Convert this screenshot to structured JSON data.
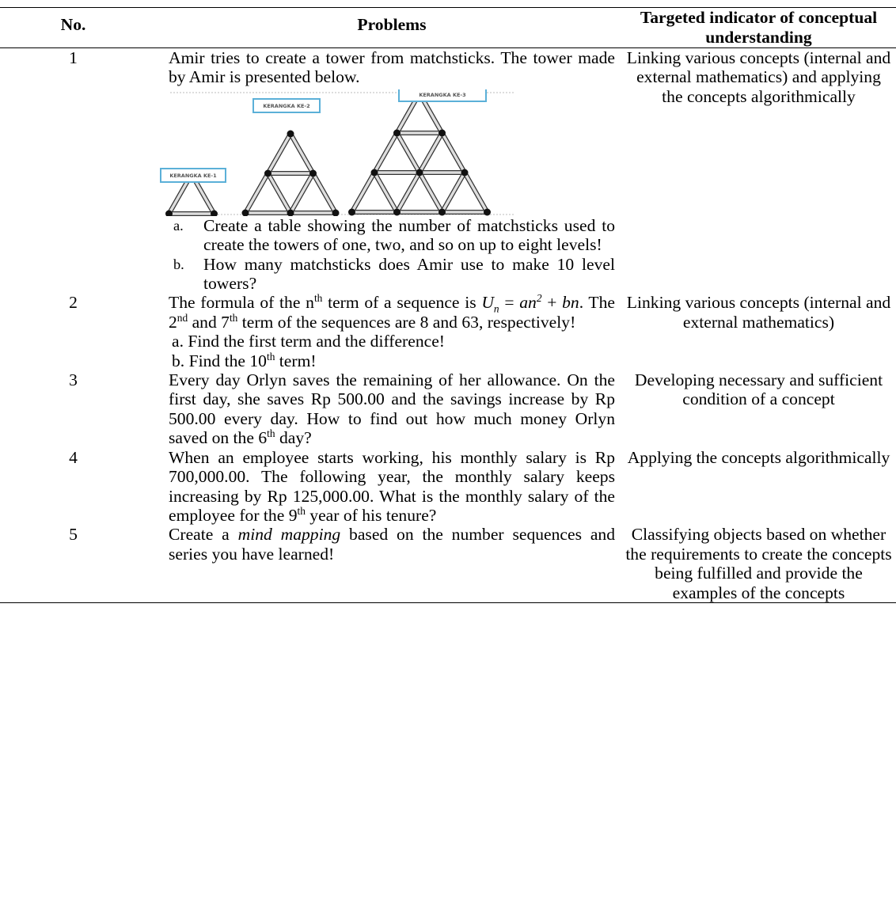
{
  "table": {
    "header": {
      "no": "No.",
      "problems": "Problems",
      "indicator": "Targeted indicator of conceptual understanding"
    },
    "rows": [
      {
        "no": "1",
        "problem": [
          "Amir tries to create a tower from matchsticks. The tower made by Amir is presented below."
        ],
        "figure_labels": [
          "KERANGKA KE-1",
          "KERANGKA KE-2",
          "KERANGKA KE-3"
        ],
        "items": [
          {
            "marker": "a.",
            "text": [
              "Create a table showing the number of matchsticks used to create the towers of one, two, and so on up to eight levels!"
            ]
          },
          {
            "marker": "b.",
            "text": [
              "How many matchsticks does Amir use to make 10 level towers?"
            ]
          }
        ],
        "indicator": "Linking various concepts (internal and external mathematics) and applying the concepts algorithmically"
      },
      {
        "no": "2",
        "problem": [
          "The formula of the n",
          "th",
          " term of a sequence is ",
          "U",
          "n",
          " = ",
          "an",
          "2",
          " + ",
          "bn",
          ". The 2",
          "nd",
          " and 7",
          "th",
          " term of the sequences are 8 and 63, respectively!"
        ],
        "items": [
          {
            "marker": "a.",
            "text": [
              "Find the first term and the difference!"
            ]
          },
          {
            "marker": "b.",
            "text": [
              "Find the 10",
              "th",
              " term!"
            ]
          }
        ],
        "indicator": "Linking various concepts (internal and external mathematics)"
      },
      {
        "no": "3",
        "problem": [
          "Every day Orlyn saves the remaining of her allowance. On the first day, she saves Rp 500.00 and the savings increase by Rp 500.00 every day. How to find out how much money Orlyn saved on the 6",
          "th",
          " day?"
        ],
        "indicator": "Developing necessary and sufficient condition of a concept"
      },
      {
        "no": "4",
        "problem": [
          "When an employee starts working, his monthly salary is Rp 700,000.00. The following year, the monthly salary keeps increasing by Rp 125,000.00. What is the monthly salary of the employee for the 9",
          "th",
          " year of his tenure?"
        ],
        "indicator": "Applying the concepts algorithmically"
      },
      {
        "no": "5",
        "problem": [
          "Create a ",
          "mind mapping",
          " based on the number sequences and series you have learned!"
        ],
        "indicator": "Classifying objects based on whether the requirements to create the concepts being fulfilled and provide the examples of the concepts"
      }
    ]
  }
}
